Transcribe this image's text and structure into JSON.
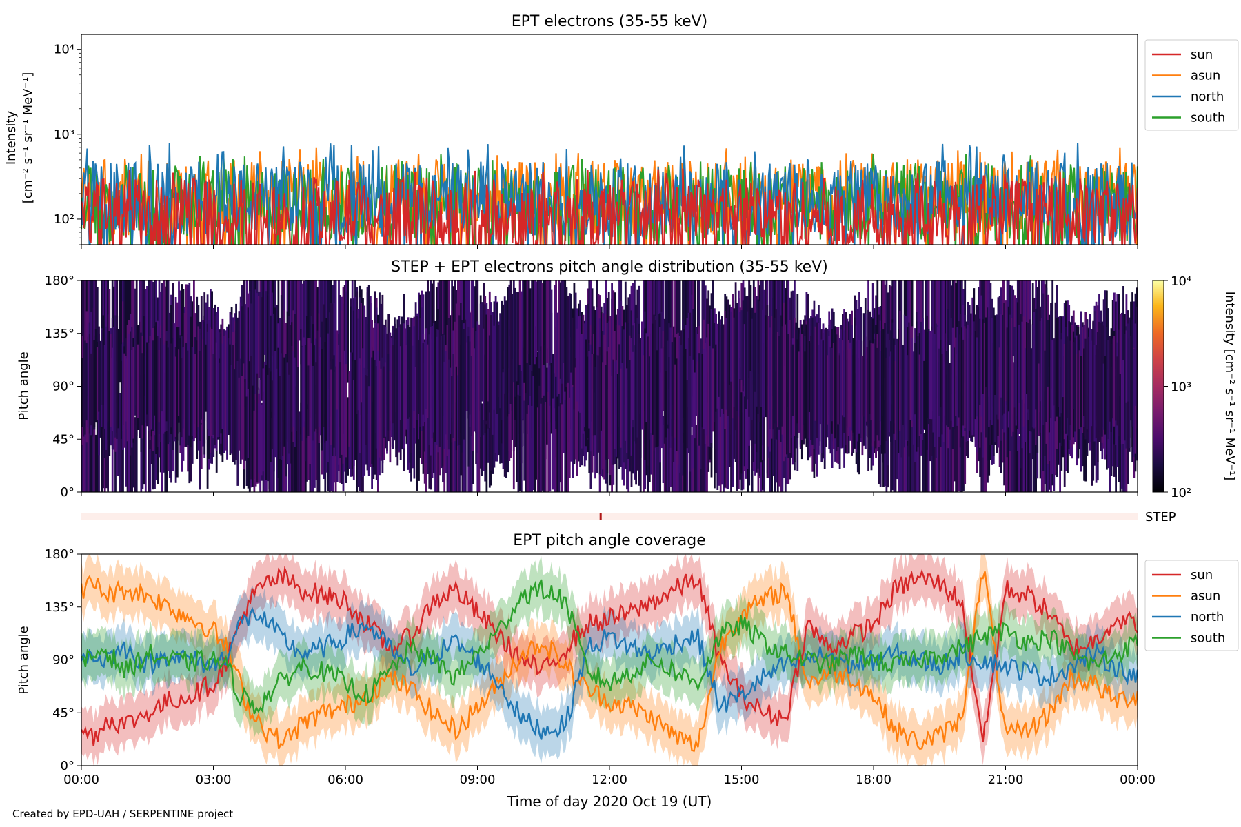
{
  "figure": {
    "credit": "Created by EPD-UAH / SERPENTINE project"
  },
  "colors": {
    "sun": "#d62728",
    "asun": "#ff7f0e",
    "north": "#1f77b4",
    "south": "#2ca02c"
  },
  "chart_data": [
    {
      "type": "line",
      "title": "EPT electrons (35-55 keV)",
      "ylabel_line1": "Intensity",
      "ylabel_line2": "[cm⁻² s⁻¹ sr⁻¹ MeV⁻¹]",
      "yscale": "log",
      "ylim": [
        50,
        15000
      ],
      "yticks": [
        {
          "value": 100,
          "label": "10²"
        },
        {
          "value": 1000,
          "label": "10³"
        },
        {
          "value": 10000,
          "label": "10⁴"
        }
      ],
      "xlim": [
        "00:00",
        "24:00"
      ],
      "legend_position": "upper right, outside plot",
      "series": [
        {
          "name": "sun",
          "color": "#d62728",
          "typical": 120,
          "peak": 400
        },
        {
          "name": "asun",
          "color": "#ff7f0e",
          "typical": 200,
          "peak": 700
        },
        {
          "name": "north",
          "color": "#1f77b4",
          "typical": 190,
          "peak": 800
        },
        {
          "name": "south",
          "color": "#2ca02c",
          "typical": 170,
          "peak": 600
        }
      ]
    },
    {
      "type": "heatmap",
      "title": "STEP + EPT electrons pitch angle distribution (35-55 keV)",
      "ylabel": "Pitch angle",
      "ylim": [
        0,
        180
      ],
      "yticks": [
        "0°",
        "45°",
        "90°",
        "135°",
        "180°"
      ],
      "colorbar": {
        "label": "Intensity [cm⁻² s⁻¹ sr⁻¹ MeV⁻¹]",
        "scale": "log",
        "range": [
          100,
          10000
        ],
        "ticks": [
          "10²",
          "10³",
          "10⁴"
        ],
        "colormap": "inferno"
      },
      "step_strip": {
        "label": "STEP",
        "mark_hour": 11.8
      }
    },
    {
      "type": "line",
      "title": "EPT pitch angle coverage",
      "ylabel": "Pitch angle",
      "ylim": [
        0,
        180
      ],
      "yticks": [
        "0°",
        "45°",
        "90°",
        "135°",
        "180°"
      ],
      "xlabel": "Time of day 2020 Oct 19 (UT)",
      "xticks": [
        "00:00",
        "03:00",
        "06:00",
        "09:00",
        "12:00",
        "15:00",
        "18:00",
        "21:00",
        "00:00"
      ],
      "legend_position": "upper right, outside plot",
      "band_halfwidth_deg": 20,
      "series": [
        {
          "name": "sun",
          "color": "#d62728",
          "hours": [
            0,
            0.3,
            0.6,
            1,
            1.5,
            2,
            2.5,
            3,
            3.3,
            3.5,
            3.8,
            4.2,
            4.6,
            5,
            5.5,
            6,
            6.5,
            7,
            7.5,
            8,
            8.5,
            9,
            9.5,
            10,
            10.5,
            11,
            11.5,
            12,
            12.5,
            13,
            13.5,
            14,
            14.5,
            15,
            15.5,
            16,
            16.5,
            17,
            17.5,
            18,
            18.5,
            19,
            19.5,
            20,
            20.5,
            21,
            21.5,
            22,
            22.5,
            23,
            23.5,
            24
          ],
          "values": [
            30,
            25,
            40,
            35,
            45,
            55,
            60,
            70,
            90,
            110,
            140,
            155,
            160,
            150,
            145,
            140,
            120,
            100,
            110,
            140,
            150,
            130,
            110,
            90,
            80,
            100,
            120,
            125,
            130,
            140,
            150,
            160,
            90,
            60,
            45,
            40,
            120,
            100,
            110,
            120,
            150,
            160,
            155,
            140,
            20,
            150,
            145,
            130,
            100,
            105,
            125,
            120
          ]
        },
        {
          "name": "asun",
          "color": "#ff7f0e",
          "hours": [
            0,
            0.3,
            0.6,
            1,
            1.5,
            2,
            2.5,
            3,
            3.3,
            3.5,
            3.8,
            4.2,
            4.6,
            5,
            5.5,
            6,
            6.5,
            7,
            7.5,
            8,
            8.5,
            9,
            9.5,
            10,
            10.5,
            11,
            11.5,
            12,
            12.5,
            13,
            13.5,
            14,
            14.5,
            15,
            15.5,
            16,
            16.5,
            17,
            17.5,
            18,
            18.5,
            19,
            19.5,
            20,
            20.5,
            21,
            21.5,
            22,
            22.5,
            23,
            23.5,
            24
          ],
          "values": [
            150,
            155,
            145,
            150,
            145,
            135,
            125,
            115,
            100,
            80,
            50,
            30,
            20,
            35,
            45,
            50,
            60,
            75,
            65,
            45,
            30,
            50,
            70,
            95,
            105,
            85,
            65,
            55,
            50,
            40,
            25,
            15,
            100,
            130,
            140,
            150,
            70,
            80,
            75,
            60,
            30,
            20,
            25,
            40,
            170,
            25,
            30,
            45,
            75,
            70,
            55,
            60
          ]
        },
        {
          "name": "north",
          "color": "#1f77b4",
          "hours": [
            0,
            0.5,
            1,
            1.5,
            2,
            2.5,
            3,
            3.3,
            3.6,
            4,
            4.5,
            5,
            5.5,
            6,
            6.5,
            7,
            7.5,
            8,
            8.5,
            9,
            9.5,
            10,
            10.5,
            11,
            11.5,
            12,
            12.5,
            13,
            13.5,
            14,
            14.5,
            15,
            15.5,
            16,
            16.5,
            17,
            17.5,
            18,
            18.5,
            19,
            19.5,
            20,
            20.5,
            21,
            21.5,
            22,
            22.5,
            23,
            23.5,
            24
          ],
          "values": [
            95,
            90,
            100,
            85,
            95,
            90,
            85,
            95,
            120,
            130,
            110,
            95,
            100,
            110,
            120,
            100,
            80,
            95,
            105,
            90,
            70,
            40,
            30,
            35,
            100,
            110,
            100,
            95,
            105,
            110,
            50,
            60,
            75,
            85,
            90,
            95,
            85,
            90,
            95,
            90,
            85,
            95,
            90,
            85,
            80,
            75,
            85,
            95,
            85,
            75
          ]
        },
        {
          "name": "south",
          "color": "#2ca02c",
          "hours": [
            0,
            0.5,
            1,
            1.5,
            2,
            2.5,
            3,
            3.3,
            3.6,
            4,
            4.5,
            5,
            5.5,
            6,
            6.5,
            7,
            7.5,
            8,
            8.5,
            9,
            9.5,
            10,
            10.5,
            11,
            11.5,
            12,
            12.5,
            13,
            13.5,
            14,
            14.5,
            15,
            15.5,
            16,
            16.5,
            17,
            17.5,
            18,
            18.5,
            19,
            19.5,
            20,
            20.5,
            21,
            21.5,
            22,
            22.5,
            23,
            23.5,
            24
          ],
          "values": [
            85,
            100,
            80,
            95,
            90,
            88,
            90,
            85,
            60,
            50,
            70,
            85,
            80,
            70,
            60,
            80,
            100,
            90,
            75,
            95,
            115,
            145,
            150,
            140,
            80,
            70,
            80,
            90,
            80,
            70,
            110,
            120,
            105,
            95,
            90,
            85,
            95,
            90,
            85,
            90,
            95,
            100,
            110,
            115,
            105,
            110,
            95,
            85,
            95,
            105
          ]
        }
      ]
    }
  ]
}
